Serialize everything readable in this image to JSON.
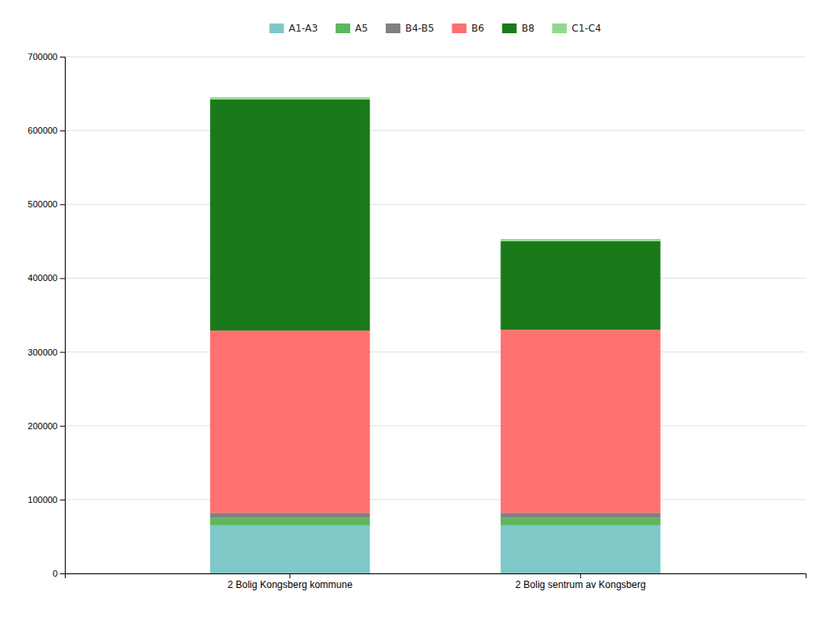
{
  "chart_data": {
    "type": "bar",
    "stacked": true,
    "categories": [
      "2 Bolig Kongsberg kommune",
      "2 Bolig sentrum av Kongsberg"
    ],
    "series": [
      {
        "name": "A1-A3",
        "color": "#7EC8C8",
        "values": [
          65000,
          65000
        ]
      },
      {
        "name": "A5",
        "color": "#5CB85C",
        "values": [
          10000,
          10000
        ]
      },
      {
        "name": "B4-B5",
        "color": "#808080",
        "values": [
          7000,
          7000
        ]
      },
      {
        "name": "B6",
        "color": "#FF7070",
        "values": [
          247000,
          248000
        ]
      },
      {
        "name": "B8",
        "color": "#1A7A1A",
        "values": [
          313000,
          120000
        ]
      },
      {
        "name": "C1-C4",
        "color": "#90D890",
        "values": [
          3000,
          3000
        ]
      }
    ],
    "ylim": [
      0,
      700000
    ],
    "yticks": [
      0,
      100000,
      200000,
      300000,
      400000,
      500000,
      600000,
      700000
    ],
    "grid": true,
    "legend": "top"
  }
}
